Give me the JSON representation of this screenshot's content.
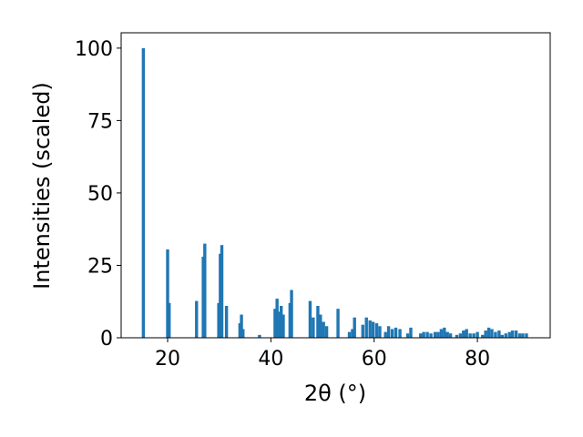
{
  "chart_data": {
    "type": "bar",
    "xlabel": "2θ (°)",
    "ylabel": "Intensities (scaled)",
    "color": "#1f77b4",
    "x": [
      15.3,
      20.0,
      20.3,
      25.6,
      26.9,
      27.2,
      29.9,
      30.2,
      30.5,
      31.4,
      34.0,
      34.3,
      34.6,
      37.8,
      40.8,
      41.2,
      41.6,
      42.0,
      42.4,
      43.7,
      44.0,
      47.6,
      48.2,
      49.1,
      49.6,
      50.2,
      50.8,
      53.0,
      55.2,
      55.8,
      56.2,
      57.8,
      58.5,
      59.2,
      59.8,
      60.5,
      61.1,
      62.2,
      62.8,
      63.5,
      64.2,
      65.0,
      66.5,
      67.1,
      69.0,
      69.6,
      70.3,
      71.0,
      71.8,
      72.4,
      73.0,
      73.6,
      74.2,
      74.8,
      76.0,
      76.7,
      77.3,
      77.9,
      78.6,
      79.3,
      80.0,
      81.0,
      81.6,
      82.2,
      82.8,
      83.5,
      84.2,
      84.8,
      85.5,
      86.2,
      86.8,
      87.5,
      88.2,
      88.8,
      89.5
    ],
    "values": [
      100,
      30.5,
      12,
      12.7,
      28,
      32.5,
      12,
      29,
      32,
      11,
      5,
      8,
      3,
      1,
      10,
      13.5,
      9,
      11,
      8,
      12,
      16.5,
      12.7,
      7,
      11,
      8,
      5.5,
      4,
      10,
      2,
      3,
      7,
      4.5,
      7,
      6,
      5.5,
      5,
      4,
      2,
      4,
      3,
      3.5,
      3,
      1.5,
      3.5,
      1.5,
      2,
      2,
      1.5,
      2,
      2,
      3,
      3.5,
      2,
      1.5,
      1,
      1.5,
      2.5,
      3,
      1.5,
      1.5,
      2,
      1,
      2.5,
      3.5,
      3,
      2,
      2.5,
      1,
      1.5,
      2,
      2.5,
      2.5,
      1.5,
      1.5,
      1.5
    ],
    "xlim": [
      11,
      94.1
    ],
    "ylim": [
      0,
      105.3
    ],
    "xticks": [
      20,
      40,
      60,
      80
    ],
    "yticks": [
      0,
      25,
      50,
      75,
      100
    ]
  }
}
